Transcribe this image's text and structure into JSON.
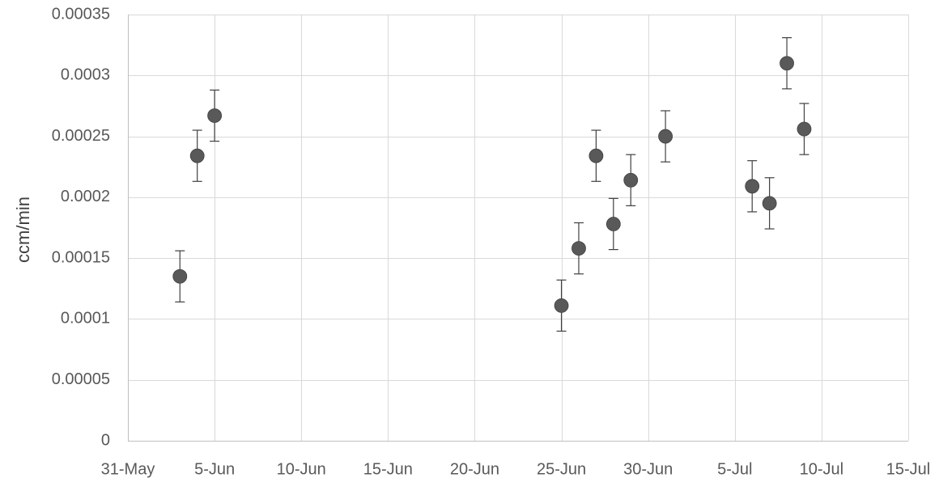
{
  "chart_data": {
    "type": "scatter",
    "title": "",
    "xlabel": "",
    "ylabel": "ccm/min",
    "x_type": "date",
    "x_range": [
      "2017-05-31",
      "2017-07-15"
    ],
    "x_ticks": [
      {
        "date": "2017-05-31",
        "label": "31-May"
      },
      {
        "date": "2017-06-05",
        "label": "5-Jun"
      },
      {
        "date": "2017-06-10",
        "label": "10-Jun"
      },
      {
        "date": "2017-06-15",
        "label": "15-Jun"
      },
      {
        "date": "2017-06-20",
        "label": "20-Jun"
      },
      {
        "date": "2017-06-25",
        "label": "25-Jun"
      },
      {
        "date": "2017-06-30",
        "label": "30-Jun"
      },
      {
        "date": "2017-07-05",
        "label": "5-Jul"
      },
      {
        "date": "2017-07-10",
        "label": "10-Jul"
      },
      {
        "date": "2017-07-15",
        "label": "15-Jul"
      }
    ],
    "ylim": [
      0,
      0.00035
    ],
    "y_ticks": [
      "0",
      "0.00005",
      "0.0001",
      "0.00015",
      "0.0002",
      "0.00025",
      "0.0003",
      "0.00035"
    ],
    "grid": true,
    "marker_color": "#595959",
    "points": [
      {
        "x": "2017-06-03",
        "y": 0.000135,
        "err": 2.1e-05
      },
      {
        "x": "2017-06-04",
        "y": 0.000234,
        "err": 2.1e-05
      },
      {
        "x": "2017-06-05",
        "y": 0.000267,
        "err": 2.1e-05
      },
      {
        "x": "2017-06-25",
        "y": 0.000111,
        "err": 2.1e-05
      },
      {
        "x": "2017-06-26",
        "y": 0.000158,
        "err": 2.1e-05
      },
      {
        "x": "2017-06-27",
        "y": 0.000234,
        "err": 2.1e-05
      },
      {
        "x": "2017-06-28",
        "y": 0.000178,
        "err": 2.1e-05
      },
      {
        "x": "2017-06-29",
        "y": 0.000214,
        "err": 2.1e-05
      },
      {
        "x": "2017-07-01",
        "y": 0.00025,
        "err": 2.1e-05
      },
      {
        "x": "2017-07-06",
        "y": 0.000209,
        "err": 2.1e-05
      },
      {
        "x": "2017-07-07",
        "y": 0.000195,
        "err": 2.1e-05
      },
      {
        "x": "2017-07-08",
        "y": 0.00031,
        "err": 2.1e-05
      },
      {
        "x": "2017-07-09",
        "y": 0.000256,
        "err": 2.1e-05
      }
    ]
  }
}
